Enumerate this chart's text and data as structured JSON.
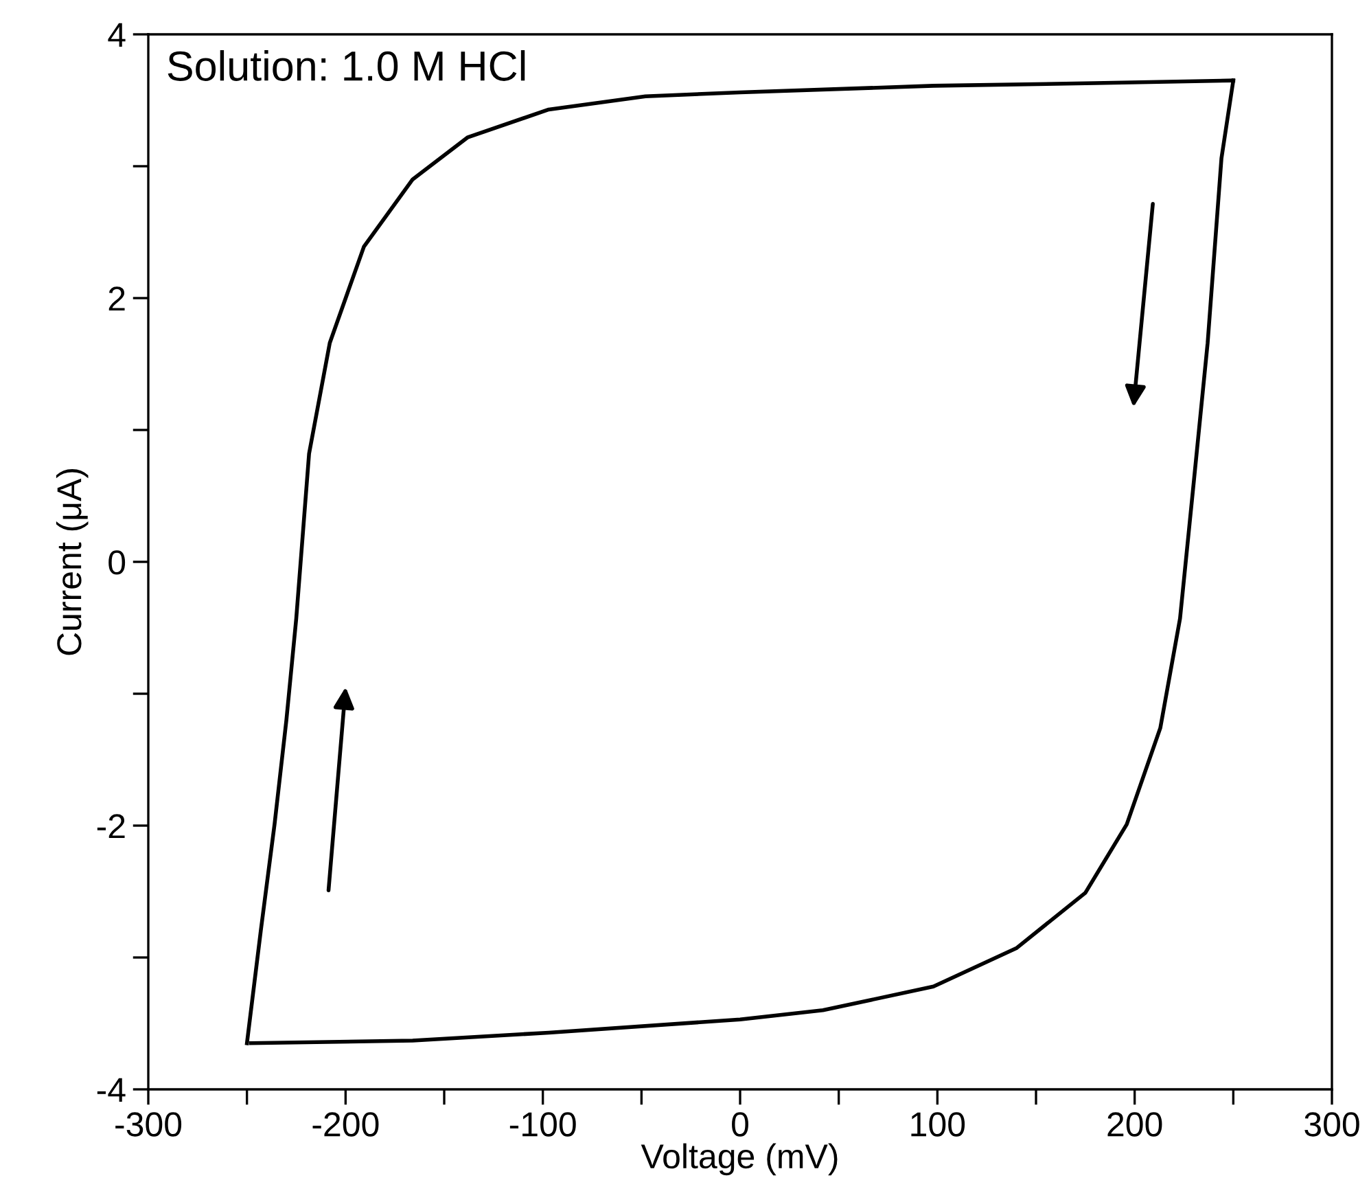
{
  "chart_data": {
    "type": "line",
    "xlabel": "Voltage (mV)",
    "ylabel": "Current (μA)",
    "annotations": [
      "Solution: 1.0 M HCl"
    ],
    "series": [
      {
        "color": "#000000",
        "x": [
          -250,
          -243,
          -236,
          -230,
          -225,
          -218.5,
          -208,
          -190.7,
          -166,
          -138,
          -97,
          -48,
          0,
          98,
          180,
          250
        ],
        "values": [
          -3.65,
          -2.8,
          -1.99,
          -1.2,
          -0.43,
          0.82,
          1.66,
          2.39,
          2.9,
          3.22,
          3.43,
          3.53,
          3.56,
          3.61,
          3.63,
          3.65
        ]
      },
      {
        "color": "#000000",
        "x": [
          -248,
          -166,
          -97,
          0,
          42,
          98,
          140,
          175,
          196,
          213,
          223,
          230,
          237,
          244,
          250
        ],
        "values": [
          -3.65,
          -3.63,
          -3.57,
          -3.47,
          -3.4,
          -3.22,
          -2.93,
          -2.51,
          -1.99,
          -1.26,
          -0.43,
          0.61,
          1.66,
          3.06,
          3.65
        ]
      }
    ],
    "xlim": [
      -300,
      300
    ],
    "xticks": [
      -300,
      {
        "value": -250,
        "label": null
      },
      -200,
      {
        "value": -150,
        "label": null
      },
      -100,
      {
        "value": -50,
        "label": null
      },
      0,
      {
        "value": 50,
        "label": null
      },
      100,
      {
        "value": 150,
        "label": null
      },
      200,
      {
        "value": 250,
        "label": null
      },
      300
    ],
    "ylim": [
      -4,
      4
    ],
    "yticks": [
      -4,
      {
        "value": -3,
        "label": null
      },
      -2,
      {
        "value": -1,
        "label": null
      },
      0,
      {
        "value": 1,
        "label": null
      },
      2,
      {
        "value": 3,
        "label": null
      },
      4
    ],
    "grid": false,
    "legend": false,
    "marker": "none",
    "line_style": "solid"
  }
}
